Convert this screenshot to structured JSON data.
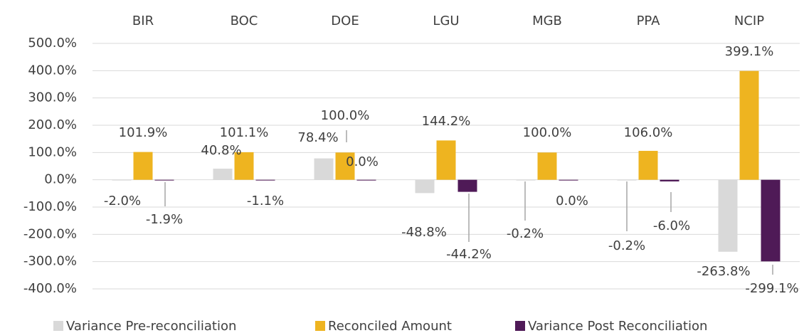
{
  "chart_data": {
    "type": "bar",
    "categories": [
      "BIR",
      "BOC",
      "DOE",
      "LGU",
      "MGB",
      "PPA",
      "NCIP"
    ],
    "series": [
      {
        "name": "Variance Pre-reconciliation",
        "color": "#d9d9d9",
        "values": [
          -2.0,
          40.8,
          78.4,
          -48.8,
          -0.2,
          -0.2,
          -263.8
        ],
        "value_labels": [
          "-2.0%",
          "40.8%",
          "78.4%",
          "-48.8%",
          "-0.2%",
          "-0.2%",
          "-263.8%"
        ]
      },
      {
        "name": "Reconciled Amount",
        "color": "#eeb420",
        "values": [
          101.9,
          101.1,
          100.0,
          144.2,
          100.0,
          106.0,
          399.1
        ],
        "value_labels": [
          "101.9%",
          "101.1%",
          "100.0%",
          "144.2%",
          "100.0%",
          "106.0%",
          "399.1%"
        ]
      },
      {
        "name": "Variance Post Reconciliation",
        "color": "#4f1a57",
        "values": [
          -1.9,
          -1.1,
          0.0,
          -44.2,
          0.0,
          -6.0,
          -299.1
        ],
        "value_labels": [
          "-1.9%",
          "-1.1%",
          "0.0%",
          "-44.2%",
          "0.0%",
          "-6.0%",
          "-299.1%"
        ]
      }
    ],
    "ylim": [
      -400,
      500
    ],
    "yticks": [
      {
        "value": 500,
        "label": "500.0%"
      },
      {
        "value": 400,
        "label": "400.0%"
      },
      {
        "value": 300,
        "label": "300.0%"
      },
      {
        "value": 200,
        "label": "200.0%"
      },
      {
        "value": 100,
        "label": "100.0%"
      },
      {
        "value": 0,
        "label": "0.0%"
      },
      {
        "value": -100,
        "label": "-100.0%"
      },
      {
        "value": -200,
        "label": "-200.0%"
      },
      {
        "value": -300,
        "label": "-300.0%"
      },
      {
        "value": -400,
        "label": "-400.0%"
      }
    ],
    "grid": true,
    "legend": "bottom"
  }
}
